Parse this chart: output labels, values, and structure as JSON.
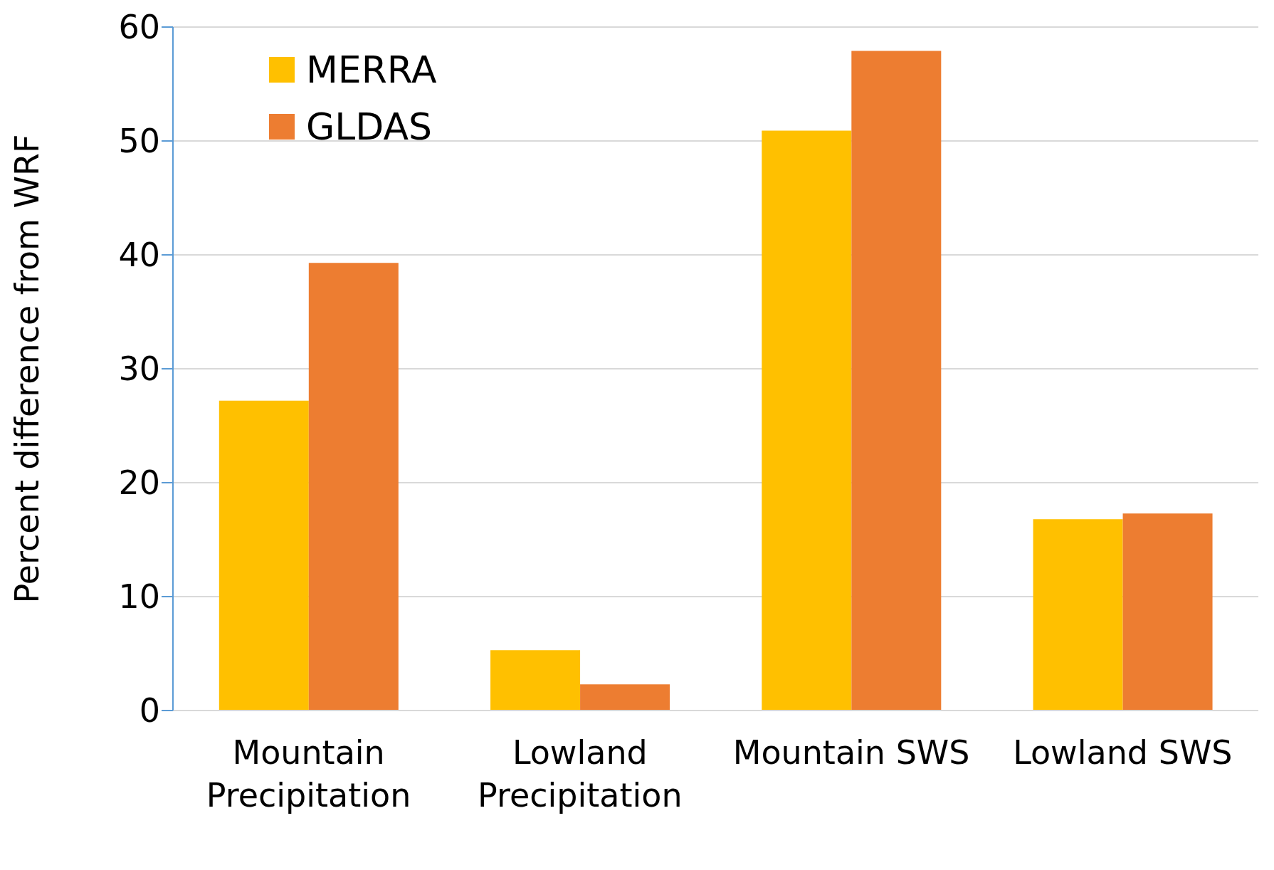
{
  "chart_data": {
    "type": "bar",
    "ylabel": "Percent difference from WRF",
    "categories": [
      "Mountain Precipitation",
      "Lowland Precipitation",
      "Mountain SWS",
      "Lowland SWS"
    ],
    "series": [
      {
        "name": "MERRA",
        "color": "#ffc000",
        "values": [
          27.2,
          5.3,
          50.9,
          16.8
        ]
      },
      {
        "name": "GLDAS",
        "color": "#ed7d31",
        "values": [
          39.3,
          2.3,
          57.9,
          17.3
        ]
      }
    ],
    "ylim": [
      0,
      60
    ],
    "yticks": [
      0,
      10,
      20,
      30,
      40,
      50,
      60
    ],
    "grid": "y",
    "legend": "top left"
  }
}
